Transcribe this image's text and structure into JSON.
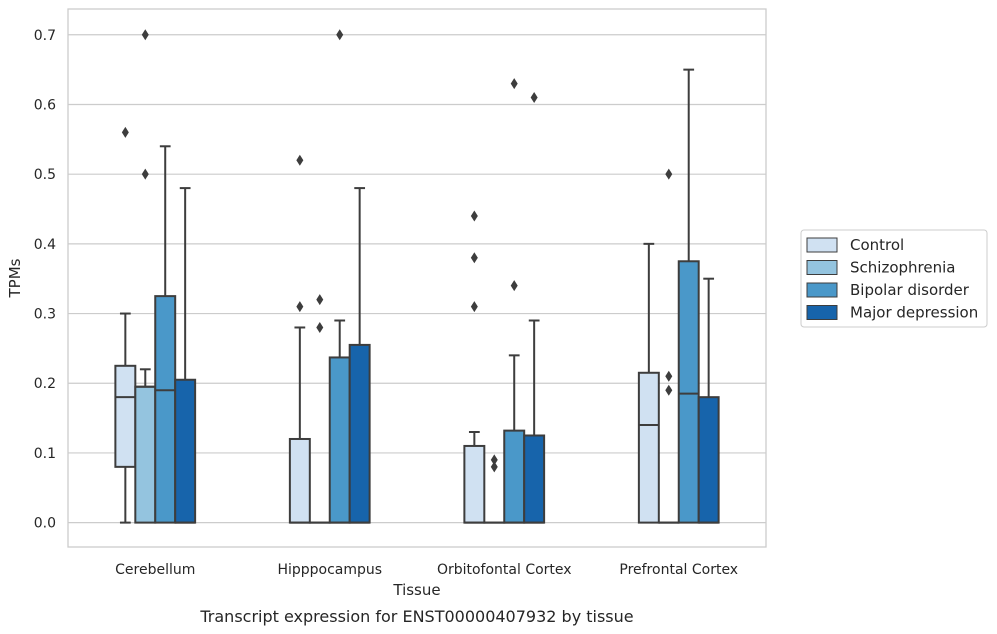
{
  "caption": "Transcript expression for ENST00000407932 by tissue",
  "chart_data": {
    "type": "boxplot",
    "title": "",
    "xlabel": "Tissue",
    "ylabel": "TPMs",
    "ylim": [
      -0.035,
      0.737
    ],
    "yticks": [
      "0.0",
      "0.1",
      "0.2",
      "0.3",
      "0.4",
      "0.5",
      "0.6",
      "0.7"
    ],
    "grid": "horizontal",
    "legend_position": "right",
    "categories": [
      "Cerebellum",
      "Hipppocampus",
      "Orbitofontal Cortex",
      "Prefrontal Cortex"
    ],
    "series": [
      {
        "name": "Control",
        "color": "#d0e1f2",
        "boxes": [
          {
            "whislo": 0.0,
            "q1": 0.08,
            "med": 0.18,
            "q3": 0.225,
            "whishi": 0.3,
            "fliers": [
              0.56
            ]
          },
          {
            "whislo": 0.0,
            "q1": 0.0,
            "med": 0.0,
            "q3": 0.12,
            "whishi": 0.28,
            "fliers": [
              0.31,
              0.52
            ]
          },
          {
            "whislo": 0.0,
            "q1": 0.0,
            "med": 0.0,
            "q3": 0.11,
            "whishi": 0.13,
            "fliers": [
              0.31,
              0.38,
              0.44
            ]
          },
          {
            "whislo": 0.0,
            "q1": 0.0,
            "med": 0.14,
            "q3": 0.215,
            "whishi": 0.4,
            "fliers": []
          }
        ]
      },
      {
        "name": "Schizophrenia",
        "color": "#94c4df",
        "boxes": [
          {
            "whislo": 0.0,
            "q1": 0.0,
            "med": 0.195,
            "q3": 0.195,
            "whishi": 0.22,
            "fliers": [
              0.5,
              0.7
            ]
          },
          {
            "whislo": 0.0,
            "q1": 0.0,
            "med": 0.0,
            "q3": 0.0,
            "whishi": 0.0,
            "fliers": [
              0.28,
              0.32
            ]
          },
          {
            "whislo": 0.0,
            "q1": 0.0,
            "med": 0.0,
            "q3": 0.0,
            "whishi": 0.0,
            "fliers": [
              0.08,
              0.09
            ]
          },
          {
            "whislo": 0.0,
            "q1": 0.0,
            "med": 0.0,
            "q3": 0.0,
            "whishi": 0.0,
            "fliers": [
              0.19,
              0.21,
              0.5
            ]
          }
        ]
      },
      {
        "name": "Bipolar disorder",
        "color": "#4a98c9",
        "boxes": [
          {
            "whislo": 0.0,
            "q1": 0.0,
            "med": 0.19,
            "q3": 0.325,
            "whishi": 0.54,
            "fliers": []
          },
          {
            "whislo": 0.0,
            "q1": 0.0,
            "med": 0.0,
            "q3": 0.237,
            "whishi": 0.29,
            "fliers": [
              0.7
            ]
          },
          {
            "whislo": 0.0,
            "q1": 0.0,
            "med": 0.0,
            "q3": 0.132,
            "whishi": 0.24,
            "fliers": [
              0.34,
              0.63
            ]
          },
          {
            "whislo": 0.0,
            "q1": 0.0,
            "med": 0.185,
            "q3": 0.375,
            "whishi": 0.65,
            "fliers": []
          }
        ]
      },
      {
        "name": "Major depression",
        "color": "#1764ab",
        "boxes": [
          {
            "whislo": 0.0,
            "q1": 0.0,
            "med": 0.0,
            "q3": 0.205,
            "whishi": 0.48,
            "fliers": []
          },
          {
            "whislo": 0.0,
            "q1": 0.0,
            "med": 0.0,
            "q3": 0.255,
            "whishi": 0.48,
            "fliers": []
          },
          {
            "whislo": 0.0,
            "q1": 0.0,
            "med": 0.0,
            "q3": 0.125,
            "whishi": 0.29,
            "fliers": [
              0.61
            ]
          },
          {
            "whislo": 0.0,
            "q1": 0.0,
            "med": 0.0,
            "q3": 0.18,
            "whishi": 0.35,
            "fliers": []
          }
        ]
      }
    ]
  }
}
